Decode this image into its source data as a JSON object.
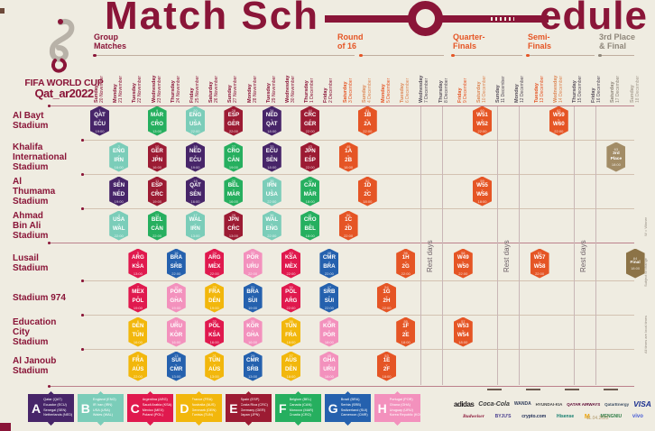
{
  "title": {
    "left": "Match Sch",
    "right": "edule"
  },
  "branding": {
    "wordmark_line1": "FIFA WORLD CUP",
    "wordmark_line2": "Qat_ar2022",
    "emblem": "qatar-2022-emblem"
  },
  "phases": [
    {
      "id": "group-matches",
      "lines": "Group\nMatches",
      "color": "#8A1538"
    },
    {
      "id": "round-of-16",
      "lines": "Round\nof 16",
      "color": "#E55525"
    },
    {
      "id": "quarter-finals",
      "lines": "Quarter-\nFinals",
      "color": "#E55525"
    },
    {
      "id": "semi-finals",
      "lines": "Semi-\nFinals",
      "color": "#E55525"
    },
    {
      "id": "third-place-final",
      "lines": "3rd Place\n& Final",
      "color": "#8F877B"
    }
  ],
  "date_tone_colors": {
    "nov": "#8A1538",
    "ko1": "#E55525",
    "ko2": "#DC8756",
    "rest": "#574F5B",
    "fin1": "#8F877B",
    "fin2": "#A89F92"
  },
  "dates": [
    {
      "day": "Sunday",
      "date": "20 November",
      "tone": "nov"
    },
    {
      "day": "Monday",
      "date": "21 November",
      "tone": "nov"
    },
    {
      "day": "Tuesday",
      "date": "22 November",
      "tone": "nov"
    },
    {
      "day": "Wednesday",
      "date": "23 November",
      "tone": "nov"
    },
    {
      "day": "Thursday",
      "date": "24 November",
      "tone": "nov"
    },
    {
      "day": "Friday",
      "date": "25 November",
      "tone": "nov"
    },
    {
      "day": "Saturday",
      "date": "26 November",
      "tone": "nov"
    },
    {
      "day": "Sunday",
      "date": "27 November",
      "tone": "nov"
    },
    {
      "day": "Monday",
      "date": "28 November",
      "tone": "nov"
    },
    {
      "day": "Tuesday",
      "date": "29 November",
      "tone": "nov"
    },
    {
      "day": "Wednesday",
      "date": "30 November",
      "tone": "nov"
    },
    {
      "day": "Thursday",
      "date": "1 December",
      "tone": "nov"
    },
    {
      "day": "Friday",
      "date": "2 December",
      "tone": "nov"
    },
    {
      "day": "Saturday",
      "date": "3 December",
      "tone": "ko1"
    },
    {
      "day": "Sunday",
      "date": "4 December",
      "tone": "ko2"
    },
    {
      "day": "Monday",
      "date": "5 December",
      "tone": "ko1"
    },
    {
      "day": "Tuesday",
      "date": "6 December",
      "tone": "ko2"
    },
    {
      "day": "Wednesday",
      "date": "7 December",
      "tone": "rest"
    },
    {
      "day": "Thursday",
      "date": "8 December",
      "tone": "rest"
    },
    {
      "day": "Friday",
      "date": "9 December",
      "tone": "ko1"
    },
    {
      "day": "Saturday",
      "date": "10 December",
      "tone": "ko2"
    },
    {
      "day": "Sunday",
      "date": "11 December",
      "tone": "rest"
    },
    {
      "day": "Monday",
      "date": "12 December",
      "tone": "rest"
    },
    {
      "day": "Tuesday",
      "date": "13 December",
      "tone": "ko1"
    },
    {
      "day": "Wednesday",
      "date": "14 December",
      "tone": "ko2"
    },
    {
      "day": "Thursday",
      "date": "15 December",
      "tone": "rest"
    },
    {
      "day": "Friday",
      "date": "16 December",
      "tone": "rest"
    },
    {
      "day": "Saturday",
      "date": "17 December",
      "tone": "fin1"
    },
    {
      "day": "Sunday",
      "date": "18 December",
      "tone": "fin2"
    }
  ],
  "stadiums": [
    {
      "name": "Al Bayt Stadium",
      "label": "Al Bayt\nStadium"
    },
    {
      "name": "Khalifa International Stadium",
      "label": "Khalifa\nInternational\nStadium"
    },
    {
      "name": "Al Thumama Stadium",
      "label": "Al\nThumama\nStadium"
    },
    {
      "name": "Ahmad Bin Ali Stadium",
      "label": "Ahmad\nBin Ali\nStadium"
    },
    {
      "name": "Lusail Stadium",
      "label": "Lusail\nStadium"
    },
    {
      "name": "Stadium 974",
      "label": "Stadium 974"
    },
    {
      "name": "Education City Stadium",
      "label": "Education\nCity\nStadium"
    },
    {
      "name": "Al Janoub Stadium",
      "label": "Al Janoub\nStadium"
    }
  ],
  "rest_days_label": "Rest days",
  "badge_colors": {
    "A": "#472569",
    "B": "#7BCDB9",
    "C": "#E0194E",
    "D": "#F2B70C",
    "E": "#9C1B33",
    "F": "#26AF5F",
    "G": "#2561AE",
    "H": "#F391BD",
    "KO": "#E55525",
    "THIRD": "#A28C66",
    "FINAL": "#8C7347"
  },
  "matches_columns": [
    "stadium_index",
    "date_index",
    "match_no",
    "home",
    "away",
    "time",
    "color_key"
  ],
  "matches": [
    [
      0,
      0,
      "1",
      "QAT",
      "ECU",
      "19:00",
      "A"
    ],
    [
      0,
      3,
      "9",
      "MAR",
      "CRO",
      "13:00",
      "F"
    ],
    [
      0,
      5,
      "20",
      "ENG",
      "USA",
      "22:00",
      "B"
    ],
    [
      0,
      7,
      "28",
      "ESP",
      "GER",
      "22:00",
      "E"
    ],
    [
      0,
      9,
      "34",
      "NED",
      "QAT",
      "18:00",
      "A"
    ],
    [
      0,
      11,
      "44",
      "CRC",
      "GER",
      "22:00",
      "E"
    ],
    [
      0,
      14,
      "51",
      "1B",
      "2A",
      "22:00",
      "KO"
    ],
    [
      0,
      20,
      "60",
      "W51",
      "W52",
      "22:00",
      "KO"
    ],
    [
      0,
      24,
      "62",
      "W59",
      "W60",
      "22:00",
      "KO"
    ],
    [
      1,
      1,
      "2",
      "ENG",
      "IRN",
      "16:00",
      "B"
    ],
    [
      1,
      3,
      "10",
      "GER",
      "JPN",
      "16:00",
      "E"
    ],
    [
      1,
      5,
      "19",
      "NED",
      "ECU",
      "19:00",
      "A"
    ],
    [
      1,
      7,
      "27",
      "CRO",
      "CAN",
      "19:00",
      "F"
    ],
    [
      1,
      9,
      "33",
      "ECU",
      "SEN",
      "18:00",
      "A"
    ],
    [
      1,
      11,
      "43",
      "JPN",
      "ESP",
      "22:00",
      "E"
    ],
    [
      1,
      13,
      "49",
      "1A",
      "2B",
      "18:00",
      "KO"
    ],
    [
      1,
      27,
      "63",
      "3rd",
      "Place",
      "18:00",
      "THIRD"
    ],
    [
      2,
      1,
      "3",
      "SEN",
      "NED",
      "19:00",
      "A"
    ],
    [
      2,
      3,
      "11",
      "ESP",
      "CRC",
      "19:00",
      "E"
    ],
    [
      2,
      5,
      "18",
      "QAT",
      "SEN",
      "16:00",
      "A"
    ],
    [
      2,
      7,
      "26",
      "BEL",
      "MAR",
      "16:00",
      "F"
    ],
    [
      2,
      9,
      "35",
      "IRN",
      "USA",
      "22:00",
      "B"
    ],
    [
      2,
      11,
      "42",
      "CAN",
      "MAR",
      "18:00",
      "F"
    ],
    [
      2,
      14,
      "52",
      "1D",
      "2C",
      "18:00",
      "KO"
    ],
    [
      2,
      20,
      "59",
      "W55",
      "W56",
      "18:00",
      "KO"
    ],
    [
      3,
      1,
      "4",
      "USA",
      "WAL",
      "22:00",
      "B"
    ],
    [
      3,
      3,
      "12",
      "BEL",
      "CAN",
      "22:00",
      "F"
    ],
    [
      3,
      5,
      "17",
      "WAL",
      "IRN",
      "13:00",
      "B"
    ],
    [
      3,
      7,
      "25",
      "JPN",
      "CRC",
      "13:00",
      "E"
    ],
    [
      3,
      9,
      "36",
      "WAL",
      "ENG",
      "22:00",
      "B"
    ],
    [
      3,
      11,
      "41",
      "CRO",
      "BEL",
      "18:00",
      "F"
    ],
    [
      3,
      13,
      "50",
      "1C",
      "2D",
      "22:00",
      "KO"
    ],
    [
      4,
      2,
      "5",
      "ARG",
      "KSA",
      "13:00",
      "C"
    ],
    [
      4,
      4,
      "16",
      "BRA",
      "SRB",
      "22:00",
      "G"
    ],
    [
      4,
      6,
      "24",
      "ARG",
      "MEX",
      "22:00",
      "C"
    ],
    [
      4,
      8,
      "32",
      "POR",
      "URU",
      "22:00",
      "H"
    ],
    [
      4,
      10,
      "40",
      "KSA",
      "MEX",
      "22:00",
      "C"
    ],
    [
      4,
      12,
      "48",
      "CMR",
      "BRA",
      "22:00",
      "G"
    ],
    [
      4,
      16,
      "56",
      "1H",
      "2G",
      "22:00",
      "KO"
    ],
    [
      4,
      19,
      "58",
      "W49",
      "W50",
      "22:00",
      "KO"
    ],
    [
      4,
      23,
      "61",
      "W57",
      "W58",
      "22:00",
      "KO"
    ],
    [
      4,
      28,
      "64",
      "Final",
      "",
      "18:00",
      "FINAL"
    ],
    [
      5,
      2,
      "7",
      "MEX",
      "POL",
      "19:00",
      "C"
    ],
    [
      5,
      4,
      "15",
      "POR",
      "GHA",
      "19:00",
      "H"
    ],
    [
      5,
      6,
      "23",
      "FRA",
      "DEN",
      "19:00",
      "D"
    ],
    [
      5,
      8,
      "31",
      "BRA",
      "SUI",
      "19:00",
      "G"
    ],
    [
      5,
      10,
      "39",
      "POL",
      "ARG",
      "22:00",
      "C"
    ],
    [
      5,
      12,
      "47",
      "SRB",
      "SUI",
      "22:00",
      "G"
    ],
    [
      5,
      15,
      "54",
      "1G",
      "2H",
      "22:00",
      "KO"
    ],
    [
      6,
      2,
      "6",
      "DEN",
      "TUN",
      "16:00",
      "D"
    ],
    [
      6,
      4,
      "14",
      "URU",
      "KOR",
      "16:00",
      "H"
    ],
    [
      6,
      6,
      "22",
      "POL",
      "KSA",
      "16:00",
      "C"
    ],
    [
      6,
      8,
      "30",
      "KOR",
      "GHA",
      "16:00",
      "H"
    ],
    [
      6,
      10,
      "38",
      "TUN",
      "FRA",
      "18:00",
      "D"
    ],
    [
      6,
      12,
      "46",
      "KOR",
      "POR",
      "18:00",
      "H"
    ],
    [
      6,
      16,
      "55",
      "1F",
      "2E",
      "18:00",
      "KO"
    ],
    [
      6,
      19,
      "57",
      "W53",
      "W54",
      "18:00",
      "KO"
    ],
    [
      7,
      2,
      "8",
      "FRA",
      "AUS",
      "22:00",
      "D"
    ],
    [
      7,
      4,
      "13",
      "SUI",
      "CMR",
      "13:00",
      "G"
    ],
    [
      7,
      6,
      "21",
      "TUN",
      "AUS",
      "13:00",
      "D"
    ],
    [
      7,
      8,
      "29",
      "CMR",
      "SRB",
      "13:00",
      "G"
    ],
    [
      7,
      10,
      "37",
      "AUS",
      "DEN",
      "18:00",
      "D"
    ],
    [
      7,
      12,
      "45",
      "GHA",
      "URU",
      "18:00",
      "H"
    ],
    [
      7,
      15,
      "53",
      "1E",
      "2F",
      "18:00",
      "KO"
    ]
  ],
  "groups_legend": [
    {
      "letter": "A",
      "color": "#472569",
      "teams": [
        "Qatar (QAT)",
        "Ecuador (ECU)",
        "Senegal (SEN)",
        "Netherlands (NED)"
      ]
    },
    {
      "letter": "B",
      "color": "#7BCDB9",
      "teams": [
        "England (ENG)",
        "IR Iran (IRN)",
        "USA (USA)",
        "Wales (WAL)"
      ]
    },
    {
      "letter": "C",
      "color": "#E0194E",
      "teams": [
        "Argentina (ARG)",
        "Saudi Arabia (KSA)",
        "Mexico (MEX)",
        "Poland (POL)"
      ]
    },
    {
      "letter": "D",
      "color": "#F2B70C",
      "teams": [
        "France (FRA)",
        "Australia (AUS)",
        "Denmark (DEN)",
        "Tunisia (TUN)"
      ]
    },
    {
      "letter": "E",
      "color": "#9C1B33",
      "teams": [
        "Spain (ESP)",
        "Costa Rica (CRC)",
        "Germany (GER)",
        "Japan (JPN)"
      ]
    },
    {
      "letter": "F",
      "color": "#26AF5F",
      "teams": [
        "Belgium (BEL)",
        "Canada (CAN)",
        "Morocco (MAR)",
        "Croatia (CRO)"
      ]
    },
    {
      "letter": "G",
      "color": "#2561AE",
      "teams": [
        "Brazil (BRA)",
        "Serbia (SRB)",
        "Switzerland (SUI)",
        "Cameroon (CMR)"
      ]
    },
    {
      "letter": "H",
      "color": "#F391BD",
      "teams": [
        "Portugal (POR)",
        "Ghana (GHA)",
        "Uruguay (URU)",
        "Korea Republic (KOR)"
      ]
    }
  ],
  "sponsors": {
    "row1": [
      "adidas",
      "Coca-Cola",
      "WANDA",
      "HYUNDAI-KIA",
      "QATAR AIRWAYS",
      "QatarEnergy",
      "VISA"
    ],
    "row2": [
      "Budweiser",
      "BYJU'S",
      "crypto.com",
      "Hisense",
      "McDonald's",
      "MENGNIU",
      "vivo"
    ]
  },
  "side_notes": [
    "W = Winner",
    "Subject to change",
    "All times are local times"
  ],
  "date_stamp": "11.04.2022"
}
